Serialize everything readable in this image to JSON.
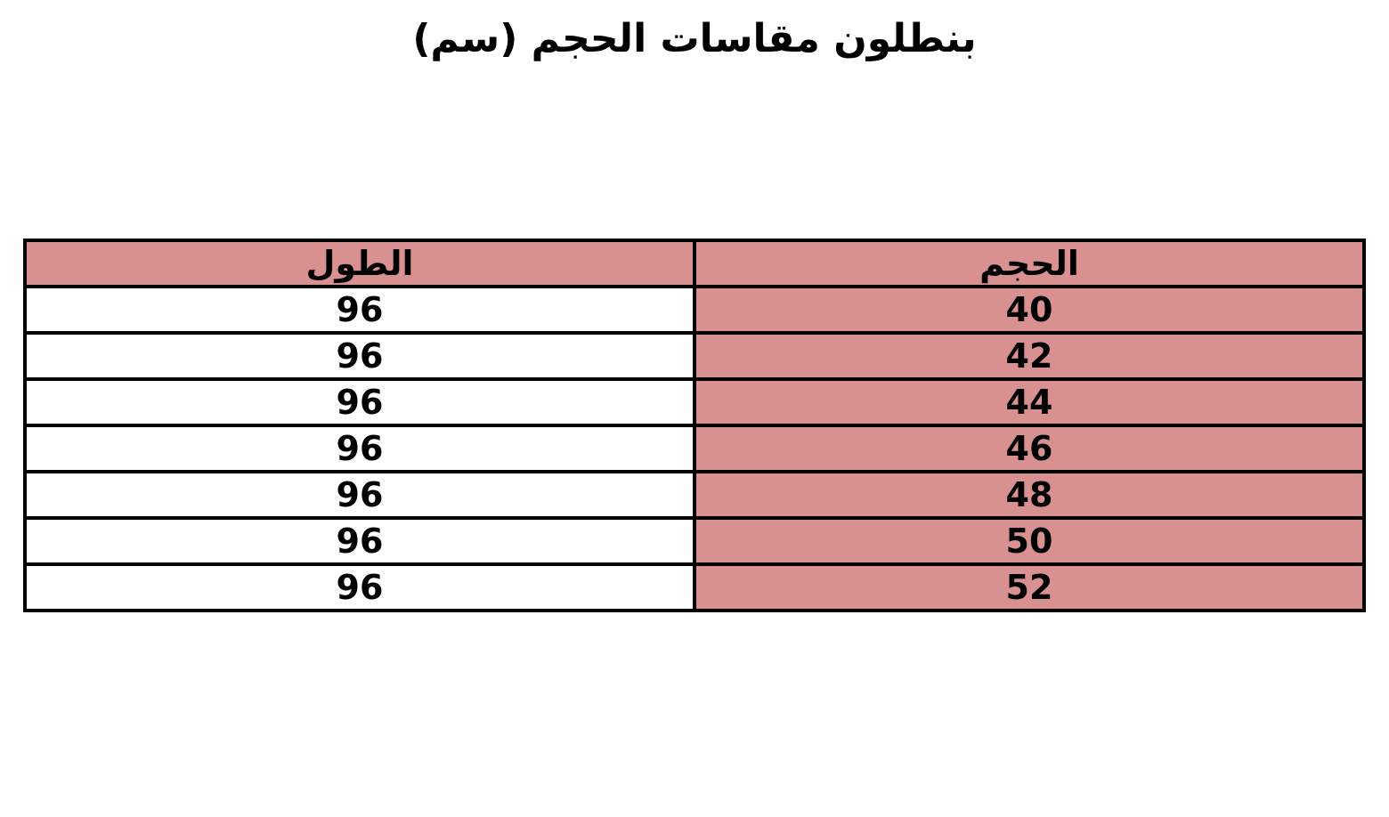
{
  "title": "بنطلون مقاسات الحجم (سم)",
  "chart_data": {
    "type": "table",
    "title": "بنطلون مقاسات الحجم (سم)",
    "columns": [
      "الحجم",
      "الطول"
    ],
    "rows": [
      [
        "40",
        "96"
      ],
      [
        "42",
        "96"
      ],
      [
        "44",
        "96"
      ],
      [
        "46",
        "96"
      ],
      [
        "48",
        "96"
      ],
      [
        "50",
        "96"
      ],
      [
        "52",
        "96"
      ]
    ],
    "layout": {
      "direction": "rtl",
      "header_position": "top",
      "highlighted_column": "الحجم"
    }
  },
  "colors": {
    "header_bg": "#d89190",
    "size_column_bg": "#d89190",
    "row_bg": "#ffffff",
    "border": "#000000",
    "text": "#000000"
  }
}
